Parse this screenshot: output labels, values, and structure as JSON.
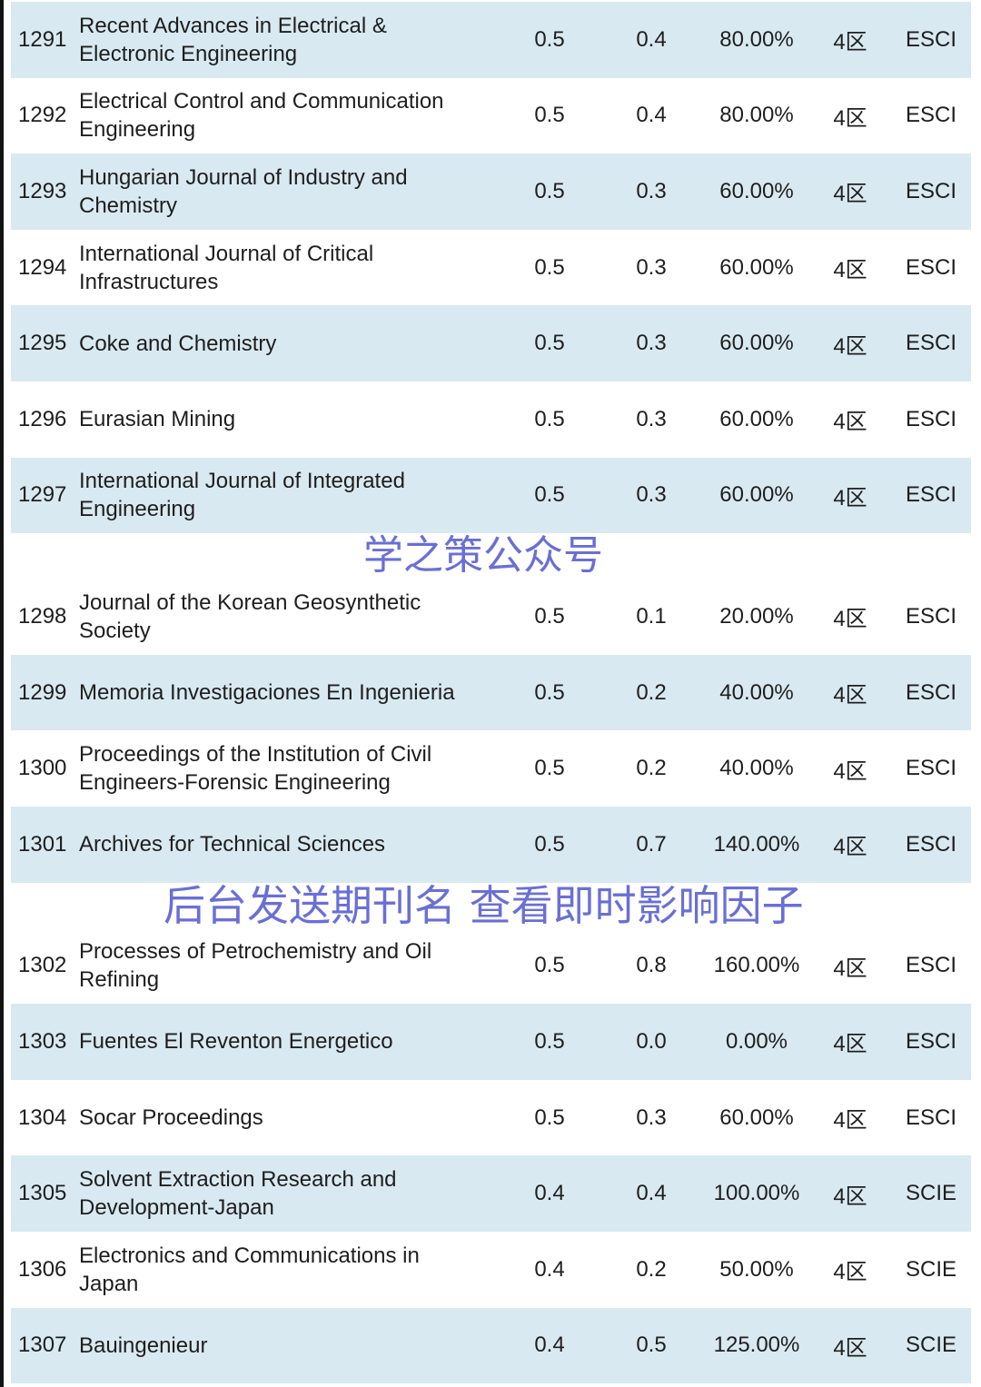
{
  "rows": [
    {
      "rank": "1291",
      "title": "Recent Advances in Electrical & Electronic Engineering",
      "if1": "0.5",
      "if2": "0.4",
      "pct": "80.00%",
      "zone": "4区",
      "index": "ESCI"
    },
    {
      "rank": "1292",
      "title": "Electrical Control and Communication Engineering",
      "if1": "0.5",
      "if2": "0.4",
      "pct": "80.00%",
      "zone": "4区",
      "index": "ESCI"
    },
    {
      "rank": "1293",
      "title": "Hungarian Journal of Industry and Chemistry",
      "if1": "0.5",
      "if2": "0.3",
      "pct": "60.00%",
      "zone": "4区",
      "index": "ESCI"
    },
    {
      "rank": "1294",
      "title": "International Journal of Critical Infrastructures",
      "if1": "0.5",
      "if2": "0.3",
      "pct": "60.00%",
      "zone": "4区",
      "index": "ESCI"
    },
    {
      "rank": "1295",
      "title": "Coke and Chemistry",
      "if1": "0.5",
      "if2": "0.3",
      "pct": "60.00%",
      "zone": "4区",
      "index": "ESCI"
    },
    {
      "rank": "1296",
      "title": "Eurasian Mining",
      "if1": "0.5",
      "if2": "0.3",
      "pct": "60.00%",
      "zone": "4区",
      "index": "ESCI"
    },
    {
      "rank": "1297",
      "title": "International Journal of Integrated Engineering",
      "if1": "0.5",
      "if2": "0.3",
      "pct": "60.00%",
      "zone": "4区",
      "index": "ESCI"
    },
    {
      "rank": "1298",
      "title": "Journal of the Korean Geosynthetic Society",
      "if1": "0.5",
      "if2": "0.1",
      "pct": "20.00%",
      "zone": "4区",
      "index": "ESCI"
    },
    {
      "rank": "1299",
      "title": "Memoria Investigaciones En Ingenieria",
      "if1": "0.5",
      "if2": "0.2",
      "pct": "40.00%",
      "zone": "4区",
      "index": "ESCI"
    },
    {
      "rank": "1300",
      "title": "Proceedings of the Institution of Civil Engineers-Forensic Engineering",
      "if1": "0.5",
      "if2": "0.2",
      "pct": "40.00%",
      "zone": "4区",
      "index": "ESCI"
    },
    {
      "rank": "1301",
      "title": "Archives for Technical Sciences",
      "if1": "0.5",
      "if2": "0.7",
      "pct": "140.00%",
      "zone": "4区",
      "index": "ESCI"
    },
    {
      "rank": "1302",
      "title": "Processes of Petrochemistry and Oil Refining",
      "if1": "0.5",
      "if2": "0.8",
      "pct": "160.00%",
      "zone": "4区",
      "index": "ESCI"
    },
    {
      "rank": "1303",
      "title": "Fuentes El Reventon Energetico",
      "if1": "0.5",
      "if2": "0.0",
      "pct": "0.00%",
      "zone": "4区",
      "index": "ESCI"
    },
    {
      "rank": "1304",
      "title": "Socar Proceedings",
      "if1": "0.5",
      "if2": "0.3",
      "pct": "60.00%",
      "zone": "4区",
      "index": "ESCI"
    },
    {
      "rank": "1305",
      "title": "Solvent Extraction Research and Development-Japan",
      "if1": "0.4",
      "if2": "0.4",
      "pct": "100.00%",
      "zone": "4区",
      "index": "SCIE"
    },
    {
      "rank": "1306",
      "title": "Electronics and Communications in Japan",
      "if1": "0.4",
      "if2": "0.2",
      "pct": "50.00%",
      "zone": "4区",
      "index": "SCIE"
    },
    {
      "rank": "1307",
      "title": "Bauingenieur",
      "if1": "0.4",
      "if2": "0.5",
      "pct": "125.00%",
      "zone": "4区",
      "index": "SCIE"
    }
  ],
  "watermarks": {
    "account": "学之策公众号",
    "prompt": "后台发送期刊名 查看即时影响因子"
  }
}
